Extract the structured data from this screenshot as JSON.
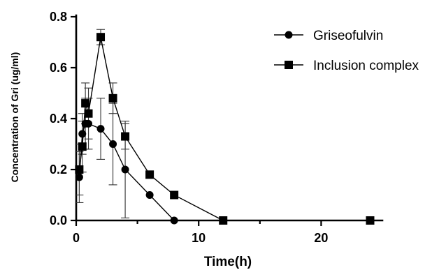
{
  "chart_data": {
    "type": "line",
    "title": "",
    "xlabel": "Time(h)",
    "ylabel": "Concentration of Gri (ug/ml)",
    "xlim": [
      0,
      25
    ],
    "ylim": [
      0,
      0.8
    ],
    "x_ticks": [
      0,
      10,
      20
    ],
    "x_tick_labels": [
      "0",
      "10",
      "20"
    ],
    "y_ticks": [
      0,
      0.2,
      0.4,
      0.6,
      0.8
    ],
    "y_tick_labels": [
      "0.0",
      "0.2",
      "0.4",
      "0.6",
      "0.8"
    ],
    "grid": false,
    "legend": "top-right",
    "series": [
      {
        "name": "Griseofulvin",
        "marker": "circle",
        "color": "#000000",
        "x": [
          0.25,
          0.5,
          0.75,
          1,
          2,
          3,
          4,
          6,
          8
        ],
        "y": [
          0.17,
          0.34,
          0.38,
          0.38,
          0.36,
          0.3,
          0.2,
          0.1,
          0.0
        ],
        "err": [
          0.1,
          0.08,
          0.1,
          0.1,
          0.12,
          0.16,
          0.19,
          0,
          0
        ]
      },
      {
        "name": "Inclusion complex",
        "marker": "square",
        "color": "#000000",
        "x": [
          0.25,
          0.5,
          0.75,
          1,
          2,
          3,
          4,
          6,
          8,
          12,
          24
        ],
        "y": [
          0.2,
          0.29,
          0.46,
          0.42,
          0.72,
          0.48,
          0.33,
          0.18,
          0.1,
          0.0,
          0.0
        ],
        "err": [
          0.1,
          0.1,
          0.08,
          0.1,
          0.03,
          0.06,
          0.05,
          0,
          0,
          0,
          0
        ]
      }
    ]
  }
}
